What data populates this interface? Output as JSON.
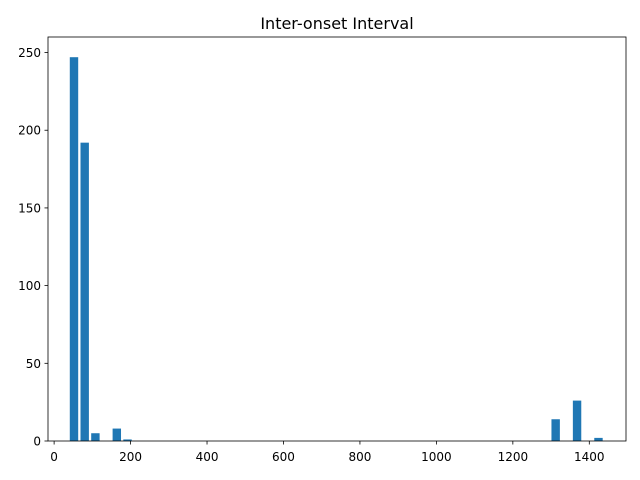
{
  "chart_data": {
    "type": "bar",
    "title": "Inter-onset Interval",
    "xlabel": "",
    "ylabel": "",
    "xlim": [
      -16,
      1496
    ],
    "ylim": [
      0,
      260
    ],
    "xticks": [
      0,
      200,
      400,
      600,
      800,
      1000,
      1200,
      1400
    ],
    "yticks": [
      0,
      50,
      100,
      150,
      200,
      250
    ],
    "bar_width": 22,
    "bar_color": "#1f77b4",
    "grid": false,
    "bars": [
      {
        "x": 52,
        "value": 247
      },
      {
        "x": 80,
        "value": 192
      },
      {
        "x": 108,
        "value": 5
      },
      {
        "x": 164,
        "value": 8
      },
      {
        "x": 192,
        "value": 1
      },
      {
        "x": 1312,
        "value": 14
      },
      {
        "x": 1368,
        "value": 26
      },
      {
        "x": 1424,
        "value": 2
      }
    ]
  }
}
